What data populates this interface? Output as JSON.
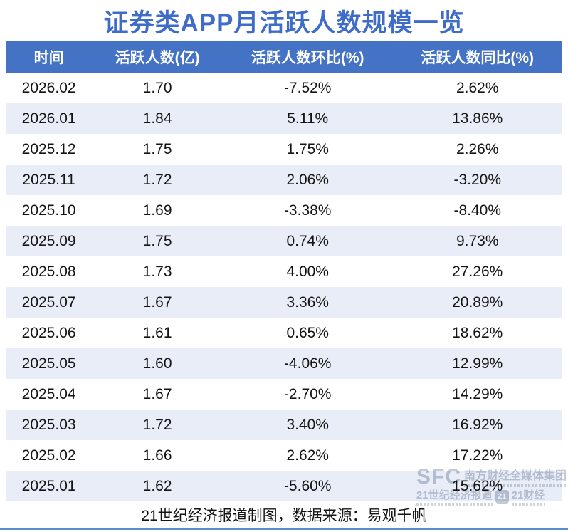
{
  "title": "证券类APP月活跃人数规模一览",
  "footer_note": "21世纪经济报道制图，数据来源：易观千帆",
  "watermark": {
    "sfc": "SFC",
    "group": "南方财经全媒体集团",
    "paper": "21世纪经济报道",
    "badge": "21",
    "brand": "21财经"
  },
  "colors": {
    "title_blue": "#3E6CC6",
    "header_bg": "#4472C4",
    "alt_row": "#E9EDF7",
    "bottom_line": "#5B8AD1",
    "watermark": "#C3CAD6",
    "header_text": "#FFFFFF",
    "body_text": "#141414"
  },
  "chart_data": {
    "type": "table",
    "title": "证券类APP月活跃人数规模一览",
    "columns": [
      "时间",
      "活跃人数(亿)",
      "活跃人数环比(%)",
      "活跃人数同比(%)"
    ],
    "rows": [
      [
        "2026.02",
        "1.70",
        "-7.52%",
        "2.62%"
      ],
      [
        "2026.01",
        "1.84",
        "5.11%",
        "13.86%"
      ],
      [
        "2025.12",
        "1.75",
        "1.75%",
        "2.26%"
      ],
      [
        "2025.11",
        "1.72",
        "2.06%",
        "-3.20%"
      ],
      [
        "2025.10",
        "1.69",
        "-3.38%",
        "-8.40%"
      ],
      [
        "2025.09",
        "1.75",
        "0.74%",
        "9.73%"
      ],
      [
        "2025.08",
        "1.73",
        "4.00%",
        "27.26%"
      ],
      [
        "2025.07",
        "1.67",
        "3.36%",
        "20.89%"
      ],
      [
        "2025.06",
        "1.61",
        "0.65%",
        "18.62%"
      ],
      [
        "2025.05",
        "1.60",
        "-4.06%",
        "12.99%"
      ],
      [
        "2025.04",
        "1.67",
        "-2.70%",
        "14.29%"
      ],
      [
        "2025.03",
        "1.72",
        "3.40%",
        "16.92%"
      ],
      [
        "2025.02",
        "1.66",
        "2.62%",
        "17.22%"
      ],
      [
        "2025.01",
        "1.62",
        "-5.60%",
        "15.62%"
      ]
    ],
    "source_note": "21世纪经济报道制图，数据来源：易观千帆",
    "layout": {
      "alternating_rows": true,
      "header_style": "blue-filled",
      "cell_align": "center"
    }
  }
}
